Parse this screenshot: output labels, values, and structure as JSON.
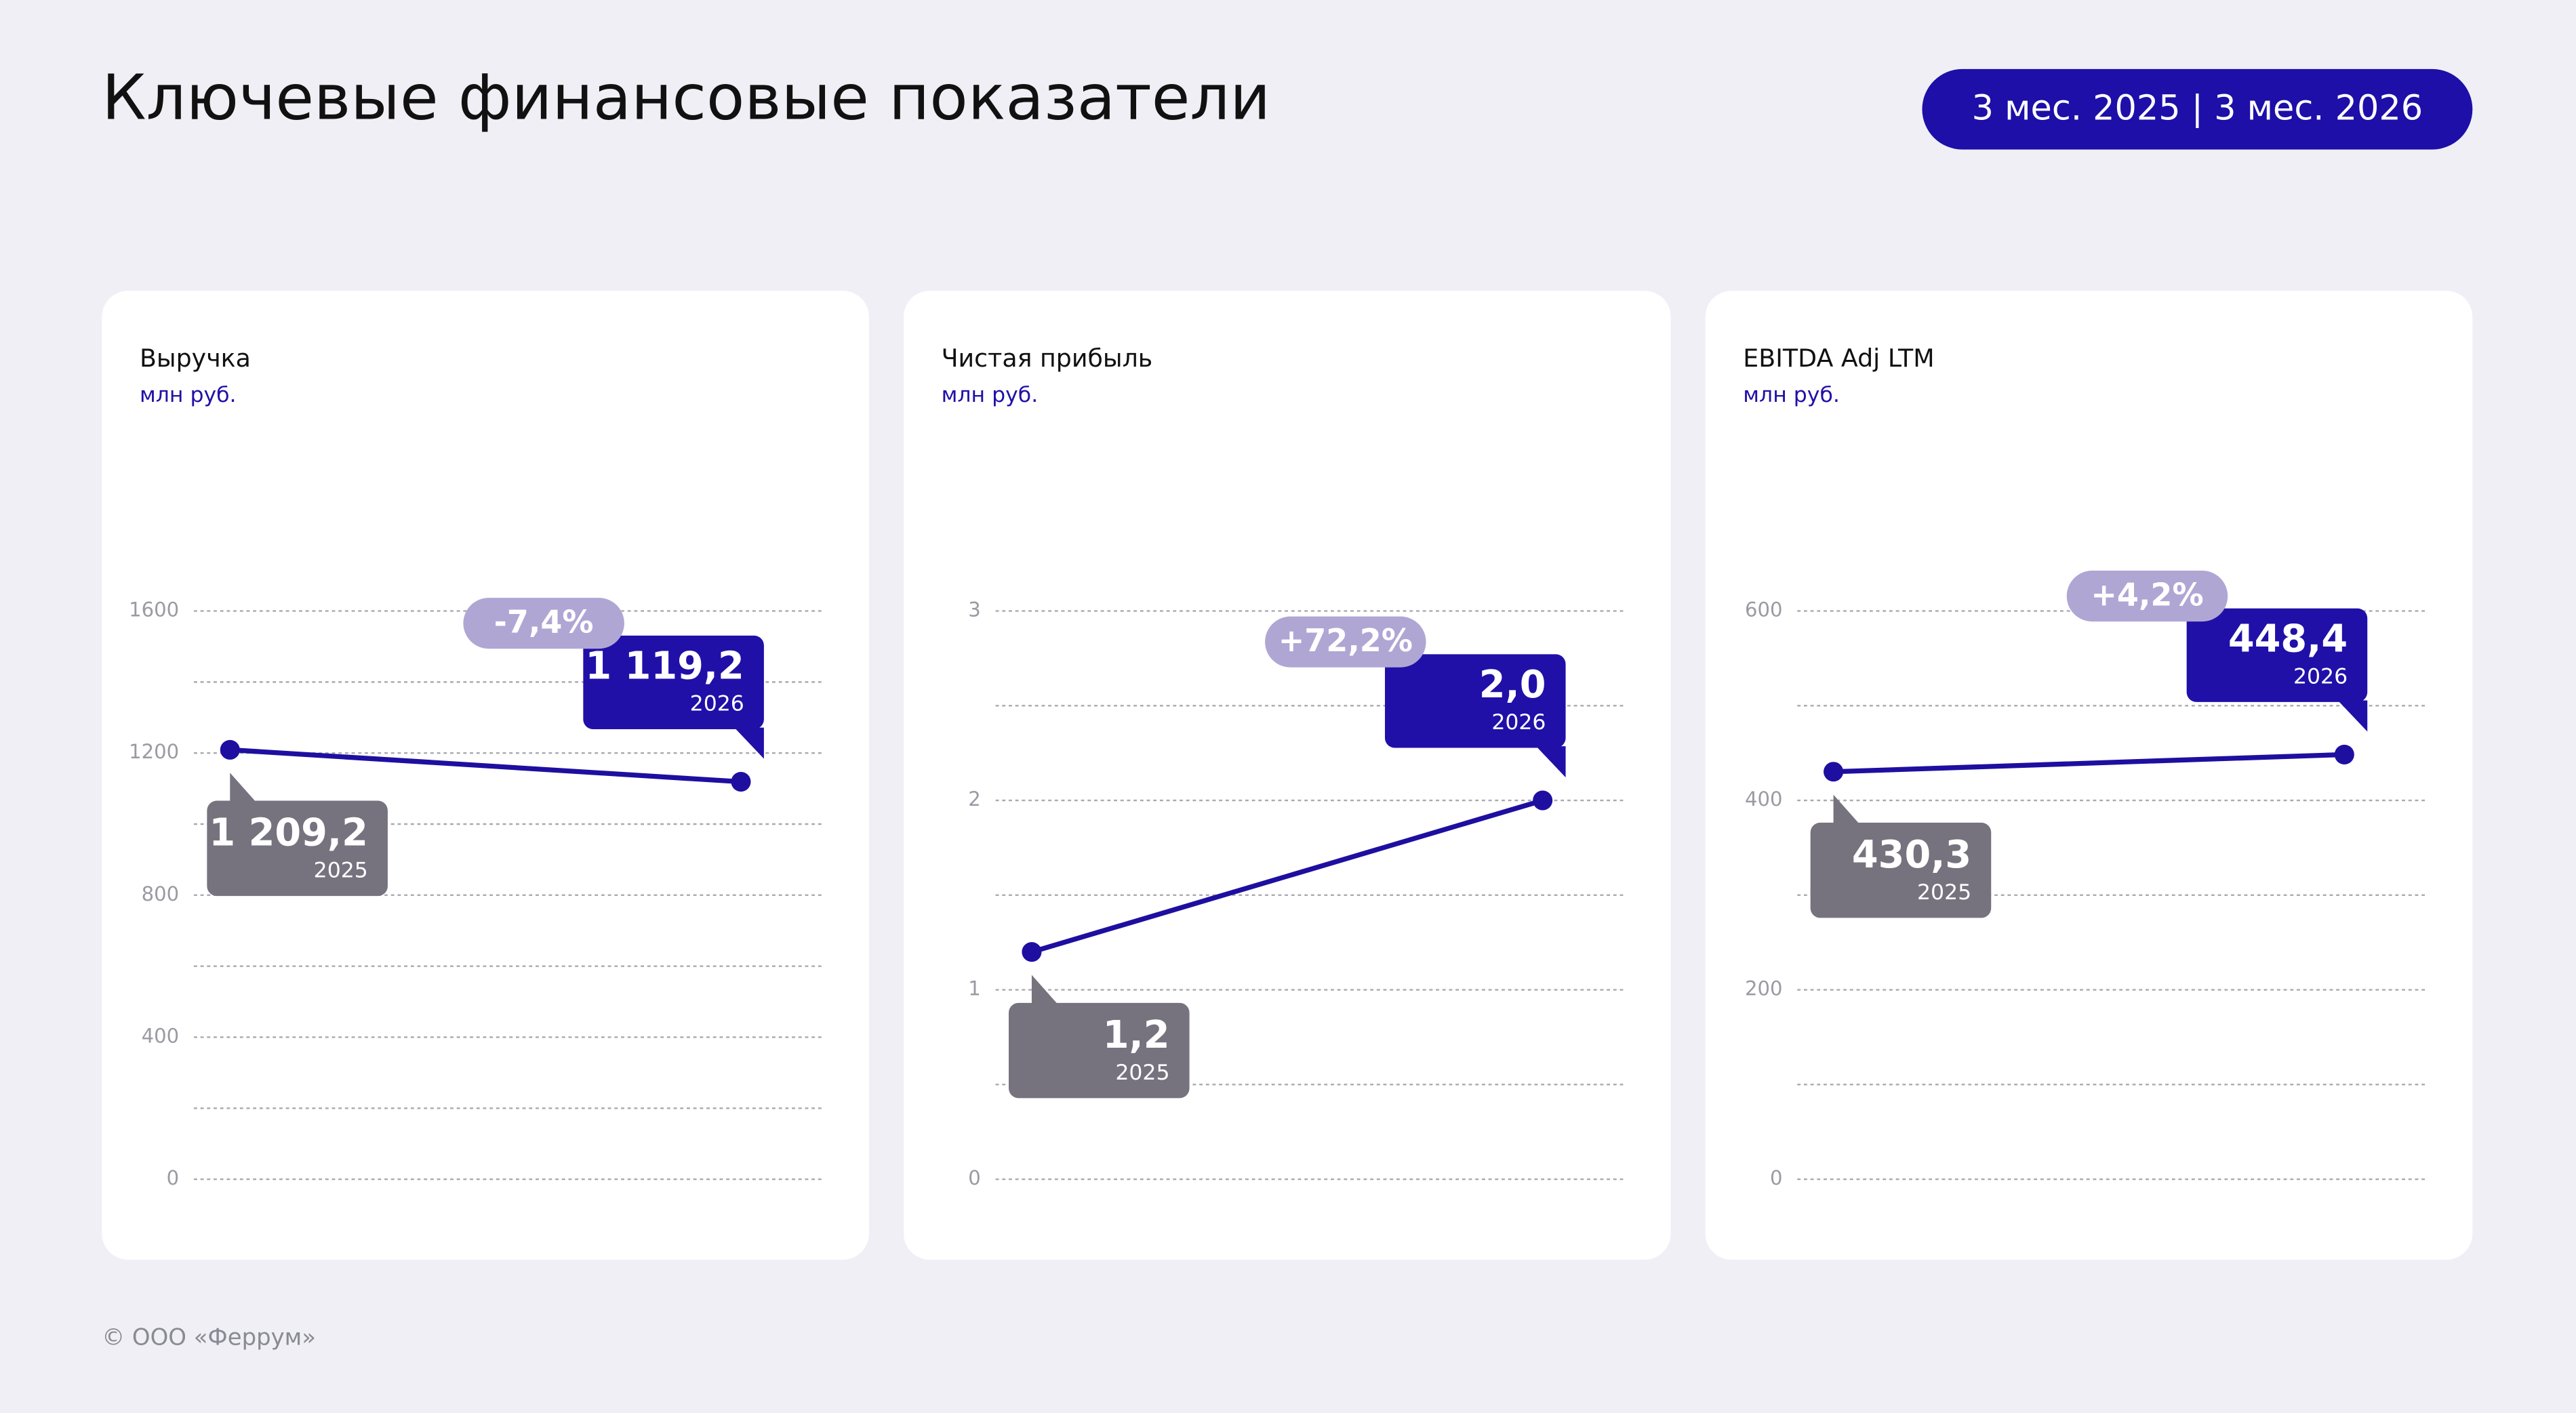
{
  "header": {
    "title": "Ключевые финансовые показатели",
    "period": "3 мес. 2025 | 3 мес. 2026"
  },
  "footer": "© ООО «Феррум»",
  "chart_data": [
    {
      "type": "line",
      "title": "Выручка",
      "subtitle": "млн руб.",
      "categories": [
        "2025",
        "2026"
      ],
      "values": [
        1209.2,
        1119.2
      ],
      "value_labels": [
        "1 209,2",
        "1 119,2"
      ],
      "change_label": "-7,4%",
      "color": "#1e0fa0",
      "ylim": [
        0,
        1600
      ],
      "yticks": [
        0,
        400,
        800,
        1200,
        1600
      ],
      "minor_yticks": [
        200,
        600,
        1000,
        1400
      ],
      "grid": true
    },
    {
      "type": "line",
      "title": "Чистая прибыль",
      "subtitle": "млн руб.",
      "categories": [
        "2025",
        "2026"
      ],
      "values": [
        1.2,
        2.0
      ],
      "value_labels": [
        "1,2",
        "2,0"
      ],
      "change_label": "+72,2%",
      "color": "#1e0fa0",
      "ylim": [
        0,
        3
      ],
      "yticks": [
        0,
        1,
        2,
        3
      ],
      "minor_yticks": [
        0.5,
        1.5,
        2.5
      ],
      "grid": true
    },
    {
      "type": "line",
      "title": "EBITDA Adj LTM",
      "subtitle": "млн руб.",
      "categories": [
        "2025",
        "2026"
      ],
      "values": [
        430.3,
        448.4
      ],
      "value_labels": [
        "430,3",
        "448,4"
      ],
      "change_label": "+4,2%",
      "color": "#1e0fa0",
      "ylim": [
        0,
        600
      ],
      "yticks": [
        0,
        200,
        400,
        600
      ],
      "minor_yticks": [
        100,
        300,
        500
      ],
      "grid": true
    }
  ]
}
